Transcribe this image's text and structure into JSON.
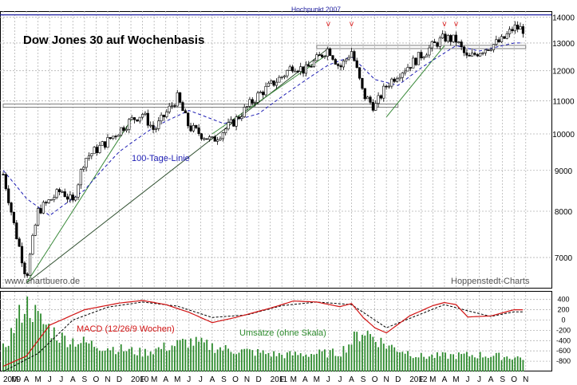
{
  "chart_data": [
    {
      "type": "candlestick",
      "title": "Dow Jones 30 auf Wochenbasis",
      "timeframe": "weekly",
      "x_range": [
        "2009-01",
        "2012-10"
      ],
      "y_scale": "log",
      "ylim": [
        6400,
        14250
      ],
      "y_ticks": [
        7000,
        8000,
        9000,
        10000,
        11000,
        12000,
        13000,
        14000
      ],
      "x_tick_labels": [
        "2009",
        "M",
        "A",
        "M",
        "J",
        "J",
        "A",
        "S",
        "O",
        "N",
        "D",
        "2010",
        "F",
        "M",
        "A",
        "M",
        "J",
        "J",
        "A",
        "S",
        "O",
        "N",
        "D",
        "2011",
        "F",
        "M",
        "A",
        "M",
        "J",
        "J",
        "A",
        "S",
        "O",
        "N",
        "D",
        "2012",
        "F",
        "M",
        "A",
        "M",
        "J",
        "J",
        "A",
        "S",
        "O",
        "N"
      ],
      "close_anchors": [
        {
          "date": "2009-01",
          "value": 8900
        },
        {
          "date": "2009-02",
          "value": 7600
        },
        {
          "date": "2009-03",
          "value": 6600
        },
        {
          "date": "2009-04",
          "value": 8000
        },
        {
          "date": "2009-06",
          "value": 8500
        },
        {
          "date": "2009-07",
          "value": 8200
        },
        {
          "date": "2009-08",
          "value": 9300
        },
        {
          "date": "2009-10",
          "value": 9800
        },
        {
          "date": "2009-12",
          "value": 10400
        },
        {
          "date": "2010-01",
          "value": 10600
        },
        {
          "date": "2010-02",
          "value": 10100
        },
        {
          "date": "2010-04",
          "value": 11100
        },
        {
          "date": "2010-05",
          "value": 10200
        },
        {
          "date": "2010-07",
          "value": 9800
        },
        {
          "date": "2010-09",
          "value": 10400
        },
        {
          "date": "2010-11",
          "value": 11200
        },
        {
          "date": "2011-01",
          "value": 11800
        },
        {
          "date": "2011-02",
          "value": 12200
        },
        {
          "date": "2011-03",
          "value": 12000
        },
        {
          "date": "2011-05",
          "value": 12800
        },
        {
          "date": "2011-06",
          "value": 12100
        },
        {
          "date": "2011-07",
          "value": 12700
        },
        {
          "date": "2011-08",
          "value": 11200
        },
        {
          "date": "2011-09",
          "value": 10800
        },
        {
          "date": "2011-10",
          "value": 11500
        },
        {
          "date": "2011-11",
          "value": 11900
        },
        {
          "date": "2011-12",
          "value": 12200
        },
        {
          "date": "2012-02",
          "value": 12900
        },
        {
          "date": "2012-03",
          "value": 13200
        },
        {
          "date": "2012-04",
          "value": 13100
        },
        {
          "date": "2012-05",
          "value": 12400
        },
        {
          "date": "2012-06",
          "value": 12700
        },
        {
          "date": "2012-07",
          "value": 12900
        },
        {
          "date": "2012-08",
          "value": 13100
        },
        {
          "date": "2012-09",
          "value": 13600
        },
        {
          "date": "2012-10",
          "value": 13500
        }
      ],
      "moving_average_anchors": [
        {
          "date": "2009-01",
          "value": 9000
        },
        {
          "date": "2009-03",
          "value": 8300
        },
        {
          "date": "2009-05",
          "value": 7900
        },
        {
          "date": "2009-08",
          "value": 8500
        },
        {
          "date": "2009-11",
          "value": 9500
        },
        {
          "date": "2010-02",
          "value": 10200
        },
        {
          "date": "2010-05",
          "value": 10700
        },
        {
          "date": "2010-08",
          "value": 10300
        },
        {
          "date": "2010-11",
          "value": 10600
        },
        {
          "date": "2011-02",
          "value": 11400
        },
        {
          "date": "2011-05",
          "value": 12200
        },
        {
          "date": "2011-07",
          "value": 12500
        },
        {
          "date": "2011-09",
          "value": 11700
        },
        {
          "date": "2011-11",
          "value": 11500
        },
        {
          "date": "2012-01",
          "value": 12100
        },
        {
          "date": "2012-04",
          "value": 12900
        },
        {
          "date": "2012-06",
          "value": 12700
        },
        {
          "date": "2012-09",
          "value": 13000
        }
      ],
      "resistance_lines": [
        {
          "label": "Hochpunkt 2007",
          "value": 14100,
          "color": "#2020a0"
        },
        {
          "value": 12850,
          "x_from": "2011-04",
          "x_to": "2012-10",
          "color": "#808080"
        },
        {
          "value": 10850,
          "x_from": "2009-01",
          "x_to": "2011-11",
          "color": "#808080"
        }
      ],
      "trend_lines": [
        {
          "from": {
            "date": "2009-03",
            "value": 6500
          },
          "to": {
            "date": "2011-05",
            "value": 12800
          },
          "color": "#2f4f2f"
        },
        {
          "from": {
            "date": "2009-03",
            "value": 6500
          },
          "to": {
            "date": "2009-12",
            "value": 10400
          },
          "color": "#3a8a3a"
        },
        {
          "from": {
            "date": "2010-07",
            "value": 10000
          },
          "to": {
            "date": "2011-05",
            "value": 12600
          },
          "color": "#3a8a3a"
        },
        {
          "from": {
            "date": "2011-10",
            "value": 10500
          },
          "to": {
            "date": "2012-03",
            "value": 12900
          },
          "color": "#3a8a3a"
        }
      ],
      "markers": [
        {
          "label": "v",
          "date": "2011-05"
        },
        {
          "label": "v",
          "date": "2011-07"
        },
        {
          "label": "v",
          "date": "2012-03"
        },
        {
          "label": "v",
          "date": "2012-04"
        }
      ],
      "annotations": {
        "ma_label": "100-Tage-Linie",
        "source_left": "www.chartbuero.de",
        "source_right": "Hoppenstedt-Charts"
      },
      "colors": {
        "up": "#ffffff",
        "down": "#000000",
        "ma": "#1e1eb4",
        "marker": "#e02020"
      }
    },
    {
      "type": "bar+line",
      "series": [
        {
          "name": "MACD (12/26/9 Wochen)",
          "color": "#d21414"
        },
        {
          "name": "Umsätze (ohne Skala)",
          "color": "#2e8b2e"
        }
      ],
      "ylim": [
        -1000,
        550
      ],
      "y_ticks": [
        400,
        200,
        0,
        -200,
        -400,
        -600,
        -800
      ],
      "macd_anchors": [
        {
          "date": "2009-01",
          "value": -900
        },
        {
          "date": "2009-03",
          "value": -700
        },
        {
          "date": "2009-05",
          "value": -100
        },
        {
          "date": "2009-08",
          "value": 200
        },
        {
          "date": "2009-11",
          "value": 330
        },
        {
          "date": "2010-01",
          "value": 380
        },
        {
          "date": "2010-03",
          "value": 300
        },
        {
          "date": "2010-05",
          "value": 150
        },
        {
          "date": "2010-07",
          "value": -50
        },
        {
          "date": "2010-09",
          "value": 50
        },
        {
          "date": "2010-12",
          "value": 230
        },
        {
          "date": "2011-02",
          "value": 370
        },
        {
          "date": "2011-04",
          "value": 350
        },
        {
          "date": "2011-06",
          "value": 260
        },
        {
          "date": "2011-07",
          "value": 320
        },
        {
          "date": "2011-08",
          "value": 50
        },
        {
          "date": "2011-09",
          "value": -150
        },
        {
          "date": "2011-10",
          "value": -250
        },
        {
          "date": "2011-12",
          "value": 80
        },
        {
          "date": "2012-02",
          "value": 280
        },
        {
          "date": "2012-03",
          "value": 340
        },
        {
          "date": "2012-04",
          "value": 300
        },
        {
          "date": "2012-05",
          "value": 60
        },
        {
          "date": "2012-07",
          "value": 80
        },
        {
          "date": "2012-09",
          "value": 200
        }
      ],
      "signal_anchors": [
        {
          "date": "2009-01",
          "value": -1000
        },
        {
          "date": "2009-04",
          "value": -650
        },
        {
          "date": "2009-07",
          "value": 0
        },
        {
          "date": "2009-10",
          "value": 250
        },
        {
          "date": "2010-01",
          "value": 350
        },
        {
          "date": "2010-04",
          "value": 270
        },
        {
          "date": "2010-07",
          "value": 50
        },
        {
          "date": "2010-10",
          "value": 100
        },
        {
          "date": "2011-01",
          "value": 280
        },
        {
          "date": "2011-04",
          "value": 350
        },
        {
          "date": "2011-07",
          "value": 300
        },
        {
          "date": "2011-09",
          "value": 0
        },
        {
          "date": "2011-10",
          "value": -150
        },
        {
          "date": "2012-01",
          "value": 120
        },
        {
          "date": "2012-03",
          "value": 300
        },
        {
          "date": "2012-05",
          "value": 180
        },
        {
          "date": "2012-07",
          "value": 70
        },
        {
          "date": "2012-09",
          "value": 160
        }
      ],
      "volume_anchors": [
        {
          "date": "2009-01",
          "value": 0.3
        },
        {
          "date": "2009-02",
          "value": 0.6
        },
        {
          "date": "2009-03",
          "value": 0.95
        },
        {
          "date": "2009-04",
          "value": 0.7
        },
        {
          "date": "2009-06",
          "value": 0.45
        },
        {
          "date": "2009-09",
          "value": 0.35
        },
        {
          "date": "2010-01",
          "value": 0.25
        },
        {
          "date": "2010-05",
          "value": 0.4
        },
        {
          "date": "2010-08",
          "value": 0.3
        },
        {
          "date": "2011-01",
          "value": 0.22
        },
        {
          "date": "2011-06",
          "value": 0.25
        },
        {
          "date": "2011-08",
          "value": 0.55
        },
        {
          "date": "2011-10",
          "value": 0.35
        },
        {
          "date": "2012-01",
          "value": 0.2
        },
        {
          "date": "2012-06",
          "value": 0.22
        },
        {
          "date": "2012-10",
          "value": 0.18
        }
      ]
    }
  ]
}
